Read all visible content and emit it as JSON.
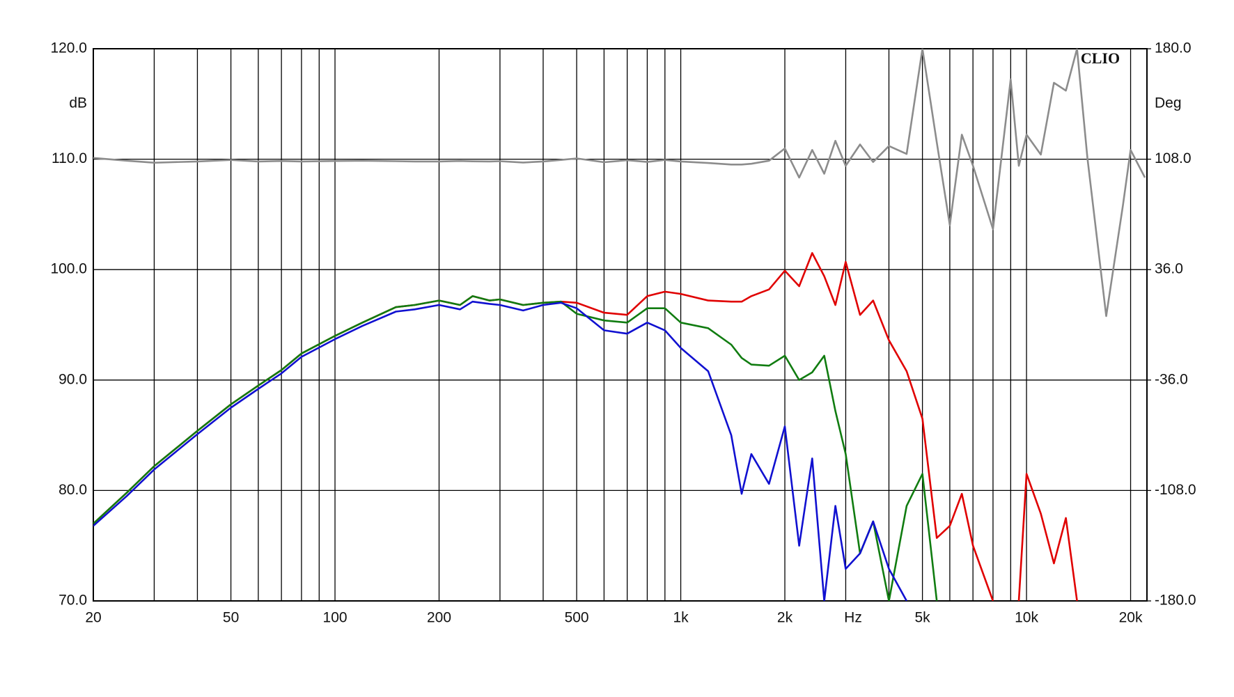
{
  "chart_data": {
    "type": "line",
    "x_label": "Hz",
    "y_label": "dB",
    "y2_label": "Deg",
    "watermark": "CLIO",
    "log_x": true,
    "grid": true,
    "xlim": [
      20,
      22300
    ],
    "xticks": [
      20,
      50,
      100,
      200,
      500,
      {
        "value": 1000,
        "label": "1k"
      },
      {
        "value": 2000,
        "label": "2k"
      },
      {
        "value": 5000,
        "label": "5k"
      },
      {
        "value": 10000,
        "label": "10k"
      },
      {
        "value": 20000,
        "label": "20k"
      }
    ],
    "xgrid_minor": [
      30,
      40,
      60,
      70,
      80,
      90,
      300,
      400,
      600,
      700,
      800,
      900,
      3000,
      4000,
      6000,
      7000,
      8000,
      9000
    ],
    "ylim": [
      70,
      120
    ],
    "yticks": [
      {
        "value": 70,
        "label": "70.0"
      },
      {
        "value": 80,
        "label": "80.0"
      },
      {
        "value": 90,
        "label": "90.0"
      },
      {
        "value": 100,
        "label": "100.0"
      },
      {
        "value": 110,
        "label": "110.0"
      },
      {
        "value": 120,
        "label": "120.0"
      }
    ],
    "y2lim": [
      -180,
      180
    ],
    "y2ticks": [
      {
        "value": -180,
        "label": "-180.0"
      },
      {
        "value": -108,
        "label": "-108.0"
      },
      {
        "value": -36,
        "label": "-36.0"
      },
      {
        "value": 36,
        "label": "36.0"
      },
      {
        "value": 108,
        "label": "108.0"
      },
      {
        "value": 180,
        "label": "180.0"
      }
    ],
    "x": [
      20,
      25,
      30,
      40,
      50,
      60,
      70,
      80,
      100,
      120,
      150,
      170,
      200,
      230,
      250,
      280,
      300,
      350,
      400,
      450,
      500,
      600,
      700,
      800,
      900,
      1000,
      1200,
      1400,
      1500,
      1600,
      1800,
      2000,
      2200,
      2400,
      2600,
      2800,
      3000,
      3300,
      3600,
      4000,
      4500,
      5000,
      5500,
      6000,
      6500,
      7000,
      8000,
      9000,
      9500,
      10000,
      11000,
      12000,
      13000,
      14000,
      15000,
      17000,
      19000,
      20000,
      22000
    ],
    "series": [
      {
        "color": "#8c8c8c",
        "axis": "y2",
        "values": [
          108.8,
          107,
          105.7,
          106.5,
          107.5,
          106.5,
          106.8,
          106.5,
          106.8,
          107,
          106.7,
          106.5,
          106.5,
          106.8,
          106.6,
          106.5,
          106.7,
          105.8,
          106.5,
          107.5,
          108.5,
          106,
          107.3,
          106.2,
          107.5,
          106.5,
          105.5,
          104.5,
          104.5,
          105,
          107,
          115,
          96,
          114,
          98.5,
          120,
          103.7,
          117.6,
          106.2,
          116.6,
          111.4,
          180,
          119,
          65,
          124,
          103.7,
          62.4,
          160,
          103.7,
          124,
          111,
          157.8,
          152.7,
          180,
          108.8,
          5.7,
          77.9,
          114,
          96
        ]
      },
      {
        "color": "#e00000",
        "values": [
          77,
          79.8,
          82.2,
          85.4,
          87.8,
          89.5,
          90.9,
          92.4,
          94,
          95.2,
          96.6,
          96.8,
          97.2,
          96.8,
          97.6,
          97.2,
          97.3,
          96.8,
          97,
          97.1,
          97,
          96.1,
          95.9,
          97.6,
          98,
          97.8,
          97.2,
          97.1,
          97.1,
          97.6,
          98.2,
          99.9,
          98.5,
          101.5,
          99.4,
          96.8,
          100.7,
          95.9,
          97.2,
          93.6,
          90.8,
          86.5,
          75.7,
          76.8,
          79.7,
          75,
          70,
          null,
          70,
          81.5,
          77.9,
          73.4,
          77.5,
          70,
          null,
          null,
          null,
          null,
          null
        ]
      },
      {
        "color": "#107c10",
        "values": [
          77,
          79.8,
          82.2,
          85.4,
          87.8,
          89.5,
          90.9,
          92.4,
          94,
          95.2,
          96.6,
          96.8,
          97.2,
          96.8,
          97.6,
          97.2,
          97.3,
          96.8,
          97,
          97.1,
          96,
          95.4,
          95.2,
          96.5,
          96.5,
          95.2,
          94.7,
          93.2,
          92,
          91.4,
          91.3,
          92.2,
          90,
          90.7,
          92.2,
          87.2,
          83.3,
          74.3,
          77.2,
          70,
          78.6,
          81.5,
          70,
          null,
          null,
          null,
          null,
          null,
          null,
          null,
          null,
          null,
          null,
          null,
          null,
          null,
          null,
          null,
          null
        ]
      },
      {
        "color": "#1010d0",
        "values": [
          76.8,
          79.5,
          81.9,
          85.1,
          87.5,
          89.2,
          90.6,
          92.1,
          93.7,
          94.9,
          96.2,
          96.4,
          96.8,
          96.4,
          97.1,
          96.9,
          96.8,
          96.3,
          96.8,
          97,
          96.5,
          94.5,
          94.2,
          95.2,
          94.5,
          92.9,
          90.8,
          85,
          79.7,
          83.3,
          80.6,
          85.8,
          75,
          82.9,
          70,
          78.6,
          72.9,
          74.3,
          77.2,
          72.9,
          70,
          null,
          null,
          null,
          null,
          null,
          null,
          null,
          null,
          null,
          null,
          null,
          null,
          null,
          null,
          null,
          null,
          null,
          null
        ]
      }
    ]
  }
}
